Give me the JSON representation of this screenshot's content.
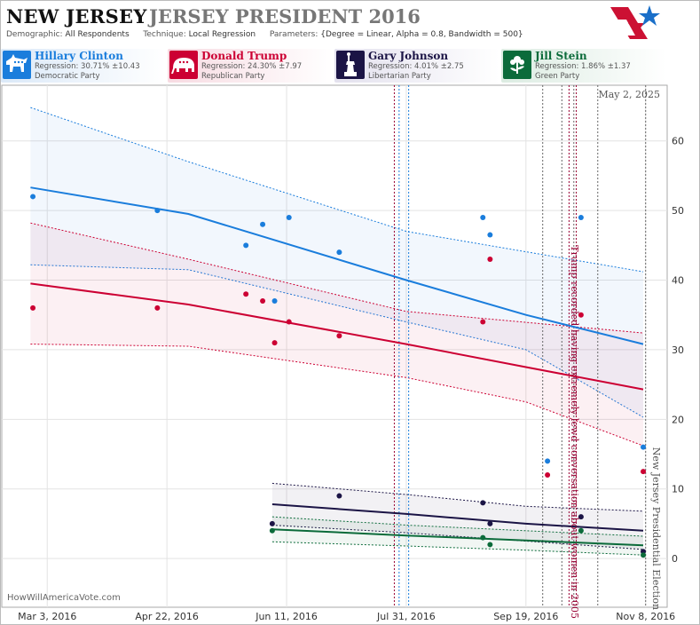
{
  "header": {
    "state": "NEW JERSEY",
    "race": "JERSEY PRESIDENT 2016",
    "demographic_label": "Demographic:",
    "demographic": "All Respondents",
    "technique_label": "Technique:",
    "technique": "Local Regression",
    "parameters_label": "Parameters:",
    "parameters": "{Degree = Linear, Alpha = 0.8, Bandwidth = 500}"
  },
  "candidates": [
    {
      "name": "Hillary Clinton",
      "regression": "Regression: 30.71% ±10.43",
      "party": "Democratic Party",
      "color": "#1a7ddc",
      "icon": "donkey-icon"
    },
    {
      "name": "Donald Trump",
      "regression": "Regression: 24.30% ±7.97",
      "party": "Republican Party",
      "color": "#cc0033",
      "icon": "elephant-icon"
    },
    {
      "name": "Gary Johnson",
      "regression": "Regression: 4.01% ±2.75",
      "party": "Libertarian Party",
      "color": "#1b1445",
      "icon": "statue-of-liberty-icon"
    },
    {
      "name": "Jill Stein",
      "regression": "Regression: 1.86% ±1.37",
      "party": "Green Party",
      "color": "#0b6b3a",
      "icon": "flower-icon"
    }
  ],
  "source": "HowWillAmericaVote.com",
  "chart_data": {
    "type": "scatter",
    "x_tick_labels": [
      "Mar 3, 2016",
      "Apr 22, 2016",
      "Jun 11, 2016",
      "Jul 31, 2016",
      "Sep 19, 2016",
      "Nov 8, 2016"
    ],
    "y_ticks": [
      0,
      10,
      20,
      30,
      40,
      50,
      60
    ],
    "ylim": [
      -7,
      68
    ],
    "xlim": [
      "2016-02-13",
      "2016-11-17"
    ],
    "date_label": "May 2, 2025",
    "grid": true,
    "series": [
      {
        "name": "Hillary Clinton",
        "color": "#1a7ddc",
        "trend": [
          {
            "x": "2016-02-25",
            "y": 53.3
          },
          {
            "x": "2016-05-01",
            "y": 49.5
          },
          {
            "x": "2016-07-31",
            "y": 40.0
          },
          {
            "x": "2016-09-19",
            "y": 35.0
          },
          {
            "x": "2016-11-07",
            "y": 30.8
          }
        ],
        "upper": [
          {
            "x": "2016-02-25",
            "y": 64.8
          },
          {
            "x": "2016-05-01",
            "y": 57.0
          },
          {
            "x": "2016-07-31",
            "y": 47.0
          },
          {
            "x": "2016-11-07",
            "y": 41.2
          }
        ],
        "lower": [
          {
            "x": "2016-02-25",
            "y": 42.2
          },
          {
            "x": "2016-05-01",
            "y": 41.5
          },
          {
            "x": "2016-07-31",
            "y": 34.0
          },
          {
            "x": "2016-09-19",
            "y": 30.0
          },
          {
            "x": "2016-11-07",
            "y": 20.3
          }
        ],
        "points": [
          {
            "x": "2016-02-26",
            "y": 52
          },
          {
            "x": "2016-04-18",
            "y": 50
          },
          {
            "x": "2016-05-25",
            "y": 45
          },
          {
            "x": "2016-06-01",
            "y": 48
          },
          {
            "x": "2016-06-06",
            "y": 37
          },
          {
            "x": "2016-06-12",
            "y": 49
          },
          {
            "x": "2016-07-03",
            "y": 44
          },
          {
            "x": "2016-09-01",
            "y": 49
          },
          {
            "x": "2016-09-04",
            "y": 46.5
          },
          {
            "x": "2016-09-28",
            "y": 14
          },
          {
            "x": "2016-10-12",
            "y": 49
          },
          {
            "x": "2016-11-07",
            "y": 16
          }
        ]
      },
      {
        "name": "Donald Trump",
        "color": "#cc0033",
        "trend": [
          {
            "x": "2016-02-25",
            "y": 39.5
          },
          {
            "x": "2016-05-01",
            "y": 36.5
          },
          {
            "x": "2016-07-31",
            "y": 30.8
          },
          {
            "x": "2016-09-19",
            "y": 27.5
          },
          {
            "x": "2016-11-07",
            "y": 24.3
          }
        ],
        "upper": [
          {
            "x": "2016-02-25",
            "y": 48.2
          },
          {
            "x": "2016-05-01",
            "y": 43.0
          },
          {
            "x": "2016-07-31",
            "y": 35.5
          },
          {
            "x": "2016-11-07",
            "y": 32.4
          }
        ],
        "lower": [
          {
            "x": "2016-02-25",
            "y": 30.8
          },
          {
            "x": "2016-05-01",
            "y": 30.5
          },
          {
            "x": "2016-07-31",
            "y": 26.0
          },
          {
            "x": "2016-09-19",
            "y": 22.5
          },
          {
            "x": "2016-11-07",
            "y": 16.2
          }
        ],
        "points": [
          {
            "x": "2016-02-26",
            "y": 36
          },
          {
            "x": "2016-04-18",
            "y": 36
          },
          {
            "x": "2016-05-25",
            "y": 38
          },
          {
            "x": "2016-06-01",
            "y": 37
          },
          {
            "x": "2016-06-06",
            "y": 31
          },
          {
            "x": "2016-06-12",
            "y": 34
          },
          {
            "x": "2016-07-03",
            "y": 32
          },
          {
            "x": "2016-09-01",
            "y": 34
          },
          {
            "x": "2016-09-04",
            "y": 43
          },
          {
            "x": "2016-09-28",
            "y": 12
          },
          {
            "x": "2016-10-12",
            "y": 35
          },
          {
            "x": "2016-11-07",
            "y": 12.5
          }
        ]
      },
      {
        "name": "Gary Johnson",
        "color": "#1b1445",
        "trend": [
          {
            "x": "2016-06-05",
            "y": 7.8
          },
          {
            "x": "2016-07-31",
            "y": 6.4
          },
          {
            "x": "2016-09-19",
            "y": 5.0
          },
          {
            "x": "2016-11-07",
            "y": 4.0
          }
        ],
        "upper": [
          {
            "x": "2016-06-05",
            "y": 10.8
          },
          {
            "x": "2016-07-31",
            "y": 9.2
          },
          {
            "x": "2016-09-19",
            "y": 7.5
          },
          {
            "x": "2016-11-07",
            "y": 6.8
          }
        ],
        "lower": [
          {
            "x": "2016-06-05",
            "y": 4.8
          },
          {
            "x": "2016-07-31",
            "y": 3.7
          },
          {
            "x": "2016-09-19",
            "y": 2.5
          },
          {
            "x": "2016-11-07",
            "y": 1.3
          }
        ],
        "points": [
          {
            "x": "2016-06-05",
            "y": 5
          },
          {
            "x": "2016-07-03",
            "y": 9
          },
          {
            "x": "2016-09-01",
            "y": 8
          },
          {
            "x": "2016-09-04",
            "y": 5
          },
          {
            "x": "2016-10-12",
            "y": 6
          },
          {
            "x": "2016-11-07",
            "y": 1
          }
        ]
      },
      {
        "name": "Jill Stein",
        "color": "#0b6b3a",
        "trend": [
          {
            "x": "2016-06-05",
            "y": 4.2
          },
          {
            "x": "2016-07-31",
            "y": 3.3
          },
          {
            "x": "2016-09-19",
            "y": 2.6
          },
          {
            "x": "2016-11-07",
            "y": 1.9
          }
        ],
        "upper": [
          {
            "x": "2016-06-05",
            "y": 6.0
          },
          {
            "x": "2016-07-31",
            "y": 4.8
          },
          {
            "x": "2016-09-19",
            "y": 4.0
          },
          {
            "x": "2016-11-07",
            "y": 3.2
          }
        ],
        "lower": [
          {
            "x": "2016-06-05",
            "y": 2.4
          },
          {
            "x": "2016-07-31",
            "y": 1.8
          },
          {
            "x": "2016-09-19",
            "y": 1.2
          },
          {
            "x": "2016-11-07",
            "y": 0.5
          }
        ],
        "points": [
          {
            "x": "2016-06-05",
            "y": 4
          },
          {
            "x": "2016-09-01",
            "y": 3
          },
          {
            "x": "2016-09-04",
            "y": 2
          },
          {
            "x": "2016-10-12",
            "y": 4
          },
          {
            "x": "2016-11-07",
            "y": 0.5
          }
        ]
      }
    ],
    "event_lines": [
      {
        "x": "2016-07-26",
        "color": "#990033"
      },
      {
        "x": "2016-07-28",
        "color": "#1a7ddc"
      },
      {
        "x": "2016-08-01",
        "color": "#1a7ddc"
      },
      {
        "x": "2016-09-26",
        "color": "#666666"
      },
      {
        "x": "2016-10-04",
        "color": "#666666"
      },
      {
        "x": "2016-10-07",
        "color": "#990033"
      },
      {
        "x": "2016-10-09",
        "color": "#666666"
      },
      {
        "x": "2016-10-10",
        "color": "#990033"
      },
      {
        "x": "2016-10-19",
        "color": "#666666"
      },
      {
        "x": "2016-11-08",
        "color": "#666666"
      }
    ],
    "annotations": [
      {
        "x": "2016-10-08",
        "y": 45,
        "text": "Trump recorded having extremely lewd conversation about women in 2005",
        "color": "#990033"
      },
      {
        "x": "2016-11-11",
        "y": 16,
        "text": "New Jersey Presidential Election",
        "color": "#555555"
      }
    ]
  }
}
